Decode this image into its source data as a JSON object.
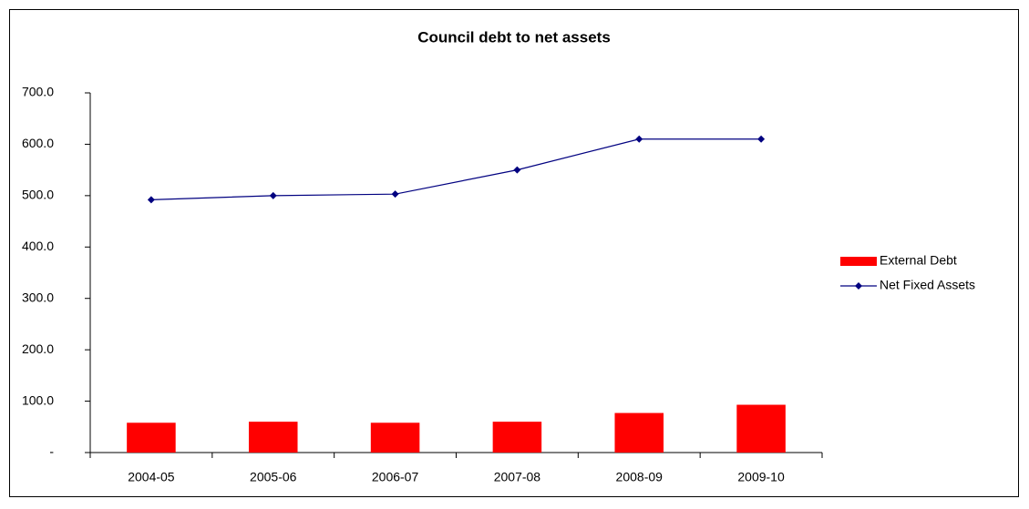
{
  "chart_data": {
    "type": "combo",
    "title": "Council debt to net assets",
    "categories": [
      "2004-05",
      "2005-06",
      "2006-07",
      "2007-08",
      "2008-09",
      "2009-10"
    ],
    "series": [
      {
        "name": "External Debt",
        "type": "bar",
        "color": "#ff0000",
        "values": [
          58,
          60,
          58,
          60,
          77,
          93
        ]
      },
      {
        "name": "Net Fixed Assets",
        "type": "line",
        "color": "#000080",
        "values": [
          492,
          500,
          503,
          550,
          610,
          610
        ]
      }
    ],
    "ylim": [
      0,
      700
    ],
    "yticks": [
      {
        "value": 0,
        "label": "-"
      },
      {
        "value": 100,
        "label": "100.0"
      },
      {
        "value": 200,
        "label": "200.0"
      },
      {
        "value": 300,
        "label": "300.0"
      },
      {
        "value": 400,
        "label": "400.0"
      },
      {
        "value": 500,
        "label": "500.0"
      },
      {
        "value": 600,
        "label": "600.0"
      },
      {
        "value": 700,
        "label": "700.0"
      }
    ],
    "grid": false,
    "legend": "right"
  }
}
